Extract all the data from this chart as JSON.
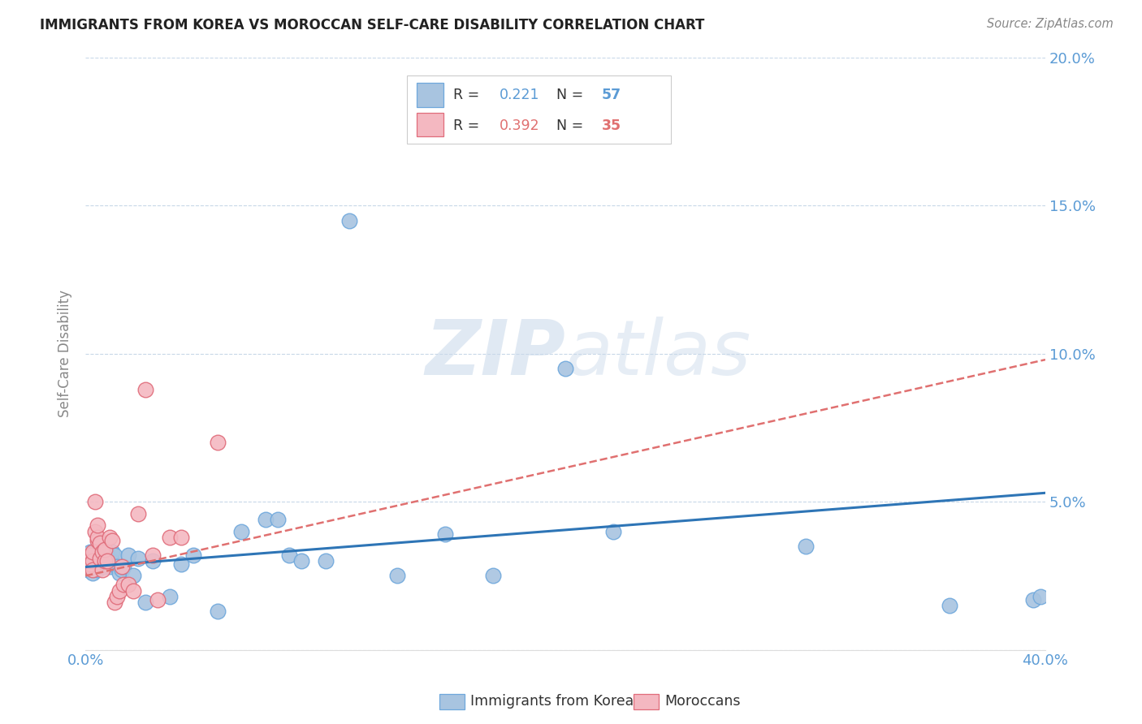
{
  "title": "IMMIGRANTS FROM KOREA VS MOROCCAN SELF-CARE DISABILITY CORRELATION CHART",
  "source": "Source: ZipAtlas.com",
  "ylabel": "Self-Care Disability",
  "xlim": [
    0.0,
    0.4
  ],
  "ylim": [
    0.0,
    0.2
  ],
  "axis_color": "#5b9bd5",
  "background_color": "#ffffff",
  "grid_color": "#c8d8e8",
  "legend": {
    "korea_r": "0.221",
    "korea_n": "57",
    "morocco_r": "0.392",
    "morocco_n": "35"
  },
  "korea_color": "#a8c4e0",
  "korea_edge": "#6fa8dc",
  "morocco_color": "#f4b8c1",
  "morocco_edge": "#e06c7a",
  "korea_line_color": "#2e75b6",
  "morocco_line_color": "#e07070",
  "korea_line_x": [
    0.0,
    0.4
  ],
  "korea_line_y": [
    0.028,
    0.053
  ],
  "morocco_line_x": [
    0.0,
    0.4
  ],
  "morocco_line_y": [
    0.025,
    0.098
  ],
  "korea_points_x": [
    0.001,
    0.001,
    0.002,
    0.002,
    0.002,
    0.003,
    0.003,
    0.003,
    0.004,
    0.004,
    0.004,
    0.005,
    0.005,
    0.005,
    0.006,
    0.006,
    0.007,
    0.007,
    0.007,
    0.008,
    0.008,
    0.009,
    0.009,
    0.01,
    0.01,
    0.011,
    0.011,
    0.012,
    0.013,
    0.014,
    0.015,
    0.016,
    0.018,
    0.02,
    0.022,
    0.025,
    0.028,
    0.035,
    0.04,
    0.045,
    0.055,
    0.065,
    0.075,
    0.08,
    0.085,
    0.09,
    0.1,
    0.11,
    0.13,
    0.15,
    0.17,
    0.2,
    0.22,
    0.3,
    0.36,
    0.395,
    0.398
  ],
  "korea_points_y": [
    0.03,
    0.027,
    0.028,
    0.031,
    0.033,
    0.026,
    0.029,
    0.032,
    0.028,
    0.03,
    0.033,
    0.027,
    0.03,
    0.032,
    0.028,
    0.031,
    0.029,
    0.031,
    0.034,
    0.028,
    0.03,
    0.029,
    0.032,
    0.028,
    0.031,
    0.03,
    0.033,
    0.032,
    0.028,
    0.026,
    0.027,
    0.028,
    0.032,
    0.025,
    0.031,
    0.016,
    0.03,
    0.018,
    0.029,
    0.032,
    0.013,
    0.04,
    0.044,
    0.044,
    0.032,
    0.03,
    0.03,
    0.145,
    0.025,
    0.039,
    0.025,
    0.095,
    0.04,
    0.035,
    0.015,
    0.017,
    0.018
  ],
  "morocco_points_x": [
    0.001,
    0.001,
    0.002,
    0.002,
    0.003,
    0.003,
    0.003,
    0.004,
    0.004,
    0.005,
    0.005,
    0.005,
    0.006,
    0.006,
    0.007,
    0.007,
    0.008,
    0.008,
    0.009,
    0.01,
    0.011,
    0.012,
    0.013,
    0.014,
    0.015,
    0.016,
    0.018,
    0.02,
    0.022,
    0.025,
    0.028,
    0.03,
    0.035,
    0.04,
    0.055
  ],
  "morocco_points_y": [
    0.03,
    0.028,
    0.032,
    0.029,
    0.03,
    0.033,
    0.027,
    0.04,
    0.05,
    0.037,
    0.038,
    0.042,
    0.031,
    0.036,
    0.033,
    0.027,
    0.03,
    0.034,
    0.03,
    0.038,
    0.037,
    0.016,
    0.018,
    0.02,
    0.028,
    0.022,
    0.022,
    0.02,
    0.046,
    0.088,
    0.032,
    0.017,
    0.038,
    0.038,
    0.07
  ]
}
